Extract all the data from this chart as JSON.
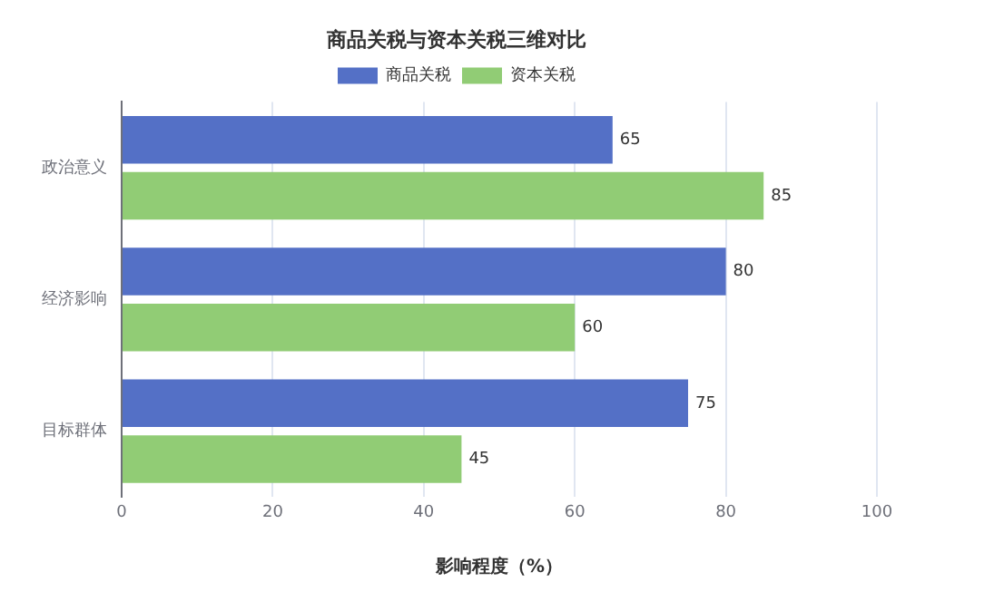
{
  "chart_data": {
    "type": "bar",
    "orientation": "horizontal",
    "title": "商品关税与资本关税三维对比",
    "xlabel": "影响程度（%）",
    "categories": [
      "政治意义",
      "经济影响",
      "目标群体"
    ],
    "series": [
      {
        "name": "商品关税",
        "color": "#5470c6",
        "values": [
          65,
          80,
          75
        ]
      },
      {
        "name": "资本关税",
        "color": "#91cc75",
        "values": [
          85,
          60,
          45
        ]
      }
    ],
    "xlim": [
      0,
      100
    ],
    "xticks": [
      0,
      20,
      40,
      60,
      80,
      100
    ],
    "grid": "x",
    "legend": "top",
    "data_labels": true
  }
}
